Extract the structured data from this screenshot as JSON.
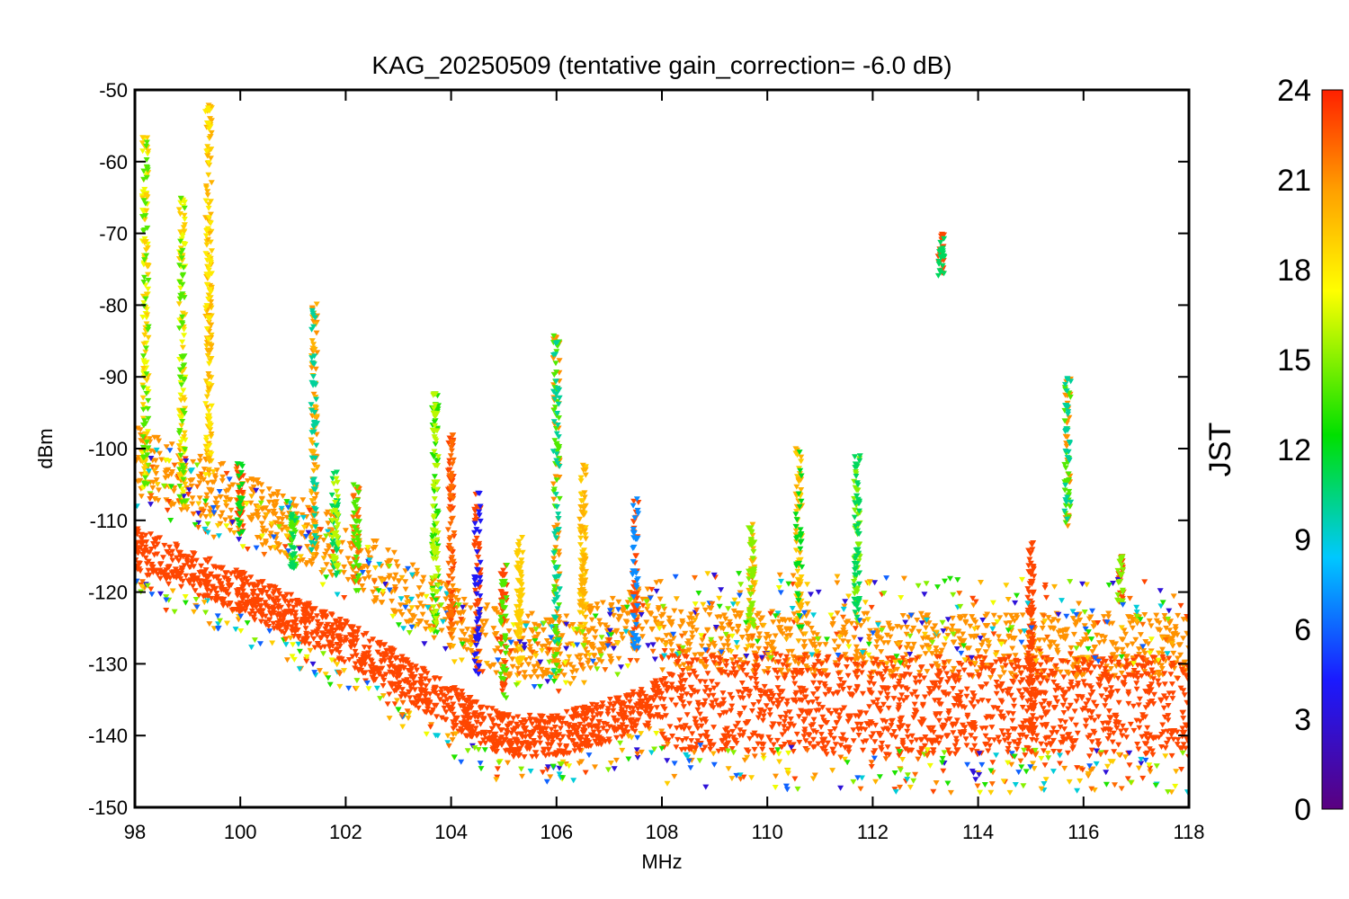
{
  "chart_data": {
    "type": "scatter",
    "title": "KAG_20250509 (tentative gain_correction= -6.0 dB)",
    "xlabel": "MHz",
    "ylabel": "dBm",
    "xlim": [
      98,
      118
    ],
    "ylim": [
      -150,
      -50
    ],
    "x_ticks": [
      98,
      100,
      102,
      104,
      106,
      108,
      110,
      112,
      114,
      116,
      118
    ],
    "y_ticks": [
      -50,
      -60,
      -70,
      -80,
      -90,
      -100,
      -110,
      -120,
      -130,
      -140,
      -150
    ],
    "colorbar": {
      "label": "JST",
      "range": [
        0,
        24
      ],
      "ticks": [
        0,
        3,
        6,
        9,
        12,
        15,
        18,
        21,
        24
      ],
      "colormap": "rainbow (purple-blue-cyan-green-yellow-orange-red)"
    },
    "marker": "triangle-down",
    "noise_floor": [
      {
        "x": 98,
        "y": -114
      },
      {
        "x": 100,
        "y": -120
      },
      {
        "x": 102,
        "y": -127
      },
      {
        "x": 104,
        "y": -136
      },
      {
        "x": 105,
        "y": -140
      },
      {
        "x": 106,
        "y": -140
      },
      {
        "x": 107,
        "y": -138
      },
      {
        "x": 108,
        "y": -135
      },
      {
        "x": 112,
        "y": -136
      },
      {
        "x": 115,
        "y": -136
      },
      {
        "x": 118,
        "y": -136
      }
    ],
    "peaks": [
      {
        "x": 98.2,
        "y_top": -56,
        "y_bottom": -106,
        "hours": [
          14,
          17,
          19
        ]
      },
      {
        "x": 98.9,
        "y_top": -65,
        "y_bottom": -108,
        "hours": [
          14,
          17,
          19
        ]
      },
      {
        "x": 99.4,
        "y_top": -52,
        "y_bottom": -104,
        "hours": [
          18,
          19,
          20
        ]
      },
      {
        "x": 100.0,
        "y_top": -102,
        "y_bottom": -112,
        "hours": [
          12,
          23
        ]
      },
      {
        "x": 101.0,
        "y_top": -109,
        "y_bottom": -117,
        "hours": [
          11,
          14
        ]
      },
      {
        "x": 101.4,
        "y_top": -79,
        "y_bottom": -115,
        "hours": [
          10,
          20,
          21
        ]
      },
      {
        "x": 101.8,
        "y_top": -103,
        "y_bottom": -118,
        "hours": [
          11,
          16
        ]
      },
      {
        "x": 102.2,
        "y_top": -105,
        "y_bottom": -120,
        "hours": [
          14,
          22
        ]
      },
      {
        "x": 103.7,
        "y_top": -92,
        "y_bottom": -126,
        "hours": [
          13,
          16
        ]
      },
      {
        "x": 104.0,
        "y_top": -98,
        "y_bottom": -126,
        "hours": [
          22,
          23
        ]
      },
      {
        "x": 104.5,
        "y_top": -106,
        "y_bottom": -132,
        "hours": [
          4,
          23
        ]
      },
      {
        "x": 105.0,
        "y_top": -116,
        "y_bottom": -135,
        "hours": [
          14,
          23
        ]
      },
      {
        "x": 105.3,
        "y_top": -112,
        "y_bottom": -130,
        "hours": [
          19
        ]
      },
      {
        "x": 106.0,
        "y_top": -84,
        "y_bottom": -132,
        "hours": [
          10,
          14,
          21
        ]
      },
      {
        "x": 106.5,
        "y_top": -102,
        "y_bottom": -128,
        "hours": [
          19,
          20
        ]
      },
      {
        "x": 107.5,
        "y_top": -107,
        "y_bottom": -128,
        "hours": [
          7,
          23
        ]
      },
      {
        "x": 109.7,
        "y_top": -110,
        "y_bottom": -125,
        "hours": [
          15,
          20
        ]
      },
      {
        "x": 110.6,
        "y_top": -100,
        "y_bottom": -125,
        "hours": [
          12,
          19,
          20
        ]
      },
      {
        "x": 111.7,
        "y_top": -101,
        "y_bottom": -125,
        "hours": [
          11,
          15
        ]
      },
      {
        "x": 113.3,
        "y_top": -70,
        "y_bottom": -76,
        "hours": [
          11,
          23
        ]
      },
      {
        "x": 115.0,
        "y_top": -113,
        "y_bottom": -140,
        "hours": [
          23
        ]
      },
      {
        "x": 115.7,
        "y_top": -90,
        "y_bottom": -111,
        "hours": [
          10,
          14,
          21
        ]
      },
      {
        "x": 116.7,
        "y_top": -115,
        "y_bottom": -122,
        "hours": [
          15,
          23
        ]
      }
    ]
  }
}
